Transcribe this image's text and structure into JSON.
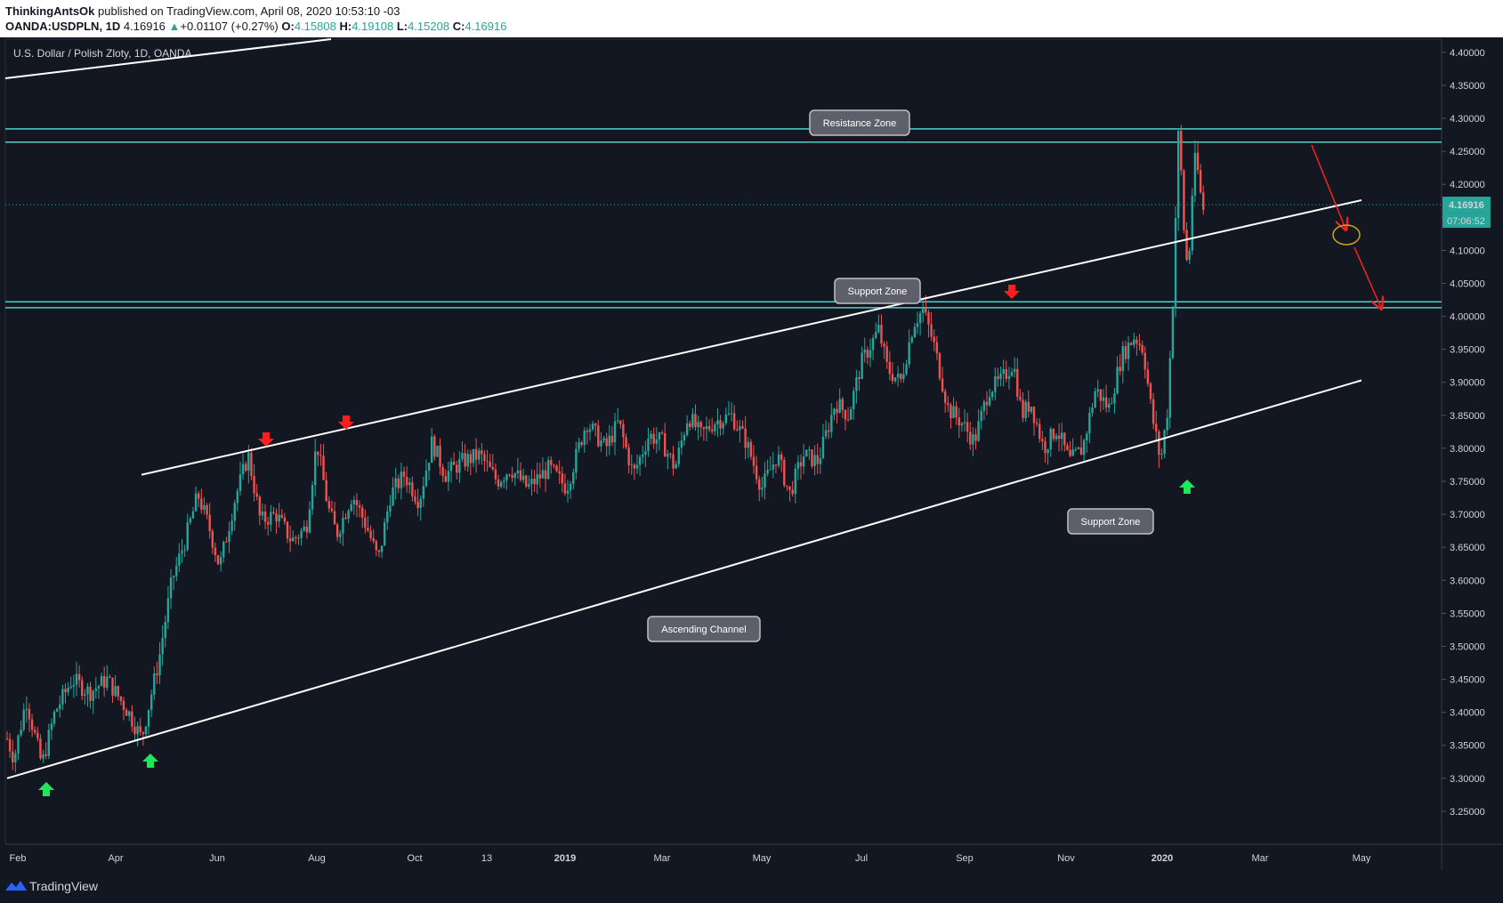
{
  "header": {
    "author": "ThinkingAntsOk",
    "published_text": "published on TradingView.com, April 08, 2020 10:53:10 -03",
    "symbol": "OANDA:USDPLN, 1D",
    "last": "4.16916",
    "change_arrow": "▲",
    "change": "+0.01107 (+0.27%)",
    "o_label": "O:",
    "o": "4.15808",
    "h_label": "H:",
    "h": "4.19108",
    "l_label": "L:",
    "l": "4.15208",
    "c_label": "C:",
    "c": "4.16916"
  },
  "footer": {
    "brand": "TradingView"
  },
  "colors": {
    "background": "#131722",
    "up": "#26a69a",
    "down": "#ef5350",
    "zone_line": "#4dd0c8",
    "trend_line": "#ffffff",
    "arrow_red": "#ff1e1e",
    "arrow_green": "#1ee85a",
    "label_bg": "#5d606b"
  },
  "chart_data": {
    "type": "candlestick",
    "title": "U.S. Dollar / Polish Zloty, 1D, OANDA",
    "ylim": [
      3.2,
      4.42
    ],
    "y_ticks": [
      "4.40000",
      "4.35000",
      "4.30000",
      "4.25000",
      "4.20000",
      "4.15000",
      "4.10000",
      "4.05000",
      "4.00000",
      "3.95000",
      "3.90000",
      "3.85000",
      "3.80000",
      "3.75000",
      "3.70000",
      "3.65000",
      "3.60000",
      "3.55000",
      "3.50000",
      "3.45000",
      "3.40000",
      "3.35000",
      "3.30000",
      "3.25000"
    ],
    "x_ticks": [
      {
        "label": "Feb",
        "bold": false
      },
      {
        "label": "Apr",
        "bold": false
      },
      {
        "label": "Jun",
        "bold": false
      },
      {
        "label": "Aug",
        "bold": false
      },
      {
        "label": "Oct",
        "bold": false
      },
      {
        "label": "13",
        "bold": false
      },
      {
        "label": "2019",
        "bold": true
      },
      {
        "label": "Mar",
        "bold": false
      },
      {
        "label": "May",
        "bold": false
      },
      {
        "label": "Jul",
        "bold": false
      },
      {
        "label": "Sep",
        "bold": false
      },
      {
        "label": "Nov",
        "bold": false
      },
      {
        "label": "2020",
        "bold": true
      },
      {
        "label": "Mar",
        "bold": false
      },
      {
        "label": "May",
        "bold": false
      }
    ],
    "price_series": [
      [
        0,
        3.36
      ],
      [
        8,
        3.33
      ],
      [
        22,
        3.42
      ],
      [
        40,
        3.32
      ],
      [
        55,
        3.4
      ],
      [
        75,
        3.45
      ],
      [
        95,
        3.43
      ],
      [
        115,
        3.45
      ],
      [
        140,
        3.4
      ],
      [
        155,
        3.36
      ],
      [
        175,
        3.48
      ],
      [
        190,
        3.6
      ],
      [
        205,
        3.66
      ],
      [
        220,
        3.73
      ],
      [
        233,
        3.68
      ],
      [
        245,
        3.62
      ],
      [
        262,
        3.72
      ],
      [
        278,
        3.79
      ],
      [
        292,
        3.69
      ],
      [
        310,
        3.7
      ],
      [
        328,
        3.66
      ],
      [
        345,
        3.68
      ],
      [
        357,
        3.81
      ],
      [
        370,
        3.71
      ],
      [
        380,
        3.67
      ],
      [
        398,
        3.73
      ],
      [
        415,
        3.68
      ],
      [
        428,
        3.63
      ],
      [
        442,
        3.73
      ],
      [
        458,
        3.76
      ],
      [
        475,
        3.72
      ],
      [
        490,
        3.81
      ],
      [
        505,
        3.76
      ],
      [
        525,
        3.78
      ],
      [
        545,
        3.79
      ],
      [
        565,
        3.75
      ],
      [
        580,
        3.77
      ],
      [
        600,
        3.74
      ],
      [
        625,
        3.77
      ],
      [
        645,
        3.74
      ],
      [
        668,
        3.84
      ],
      [
        690,
        3.8
      ],
      [
        705,
        3.84
      ],
      [
        722,
        3.76
      ],
      [
        740,
        3.82
      ],
      [
        755,
        3.81
      ],
      [
        770,
        3.77
      ],
      [
        785,
        3.85
      ],
      [
        800,
        3.82
      ],
      [
        815,
        3.84
      ],
      [
        835,
        3.85
      ],
      [
        852,
        3.81
      ],
      [
        870,
        3.74
      ],
      [
        888,
        3.79
      ],
      [
        902,
        3.73
      ],
      [
        918,
        3.79
      ],
      [
        935,
        3.78
      ],
      [
        955,
        3.87
      ],
      [
        970,
        3.85
      ],
      [
        985,
        3.93
      ],
      [
        1005,
        3.98
      ],
      [
        1015,
        3.92
      ],
      [
        1030,
        3.9
      ],
      [
        1045,
        3.99
      ],
      [
        1056,
        4.01
      ],
      [
        1068,
        3.96
      ],
      [
        1085,
        3.86
      ],
      [
        1100,
        3.84
      ],
      [
        1115,
        3.81
      ],
      [
        1132,
        3.89
      ],
      [
        1145,
        3.9
      ],
      [
        1160,
        3.93
      ],
      [
        1170,
        3.85
      ],
      [
        1180,
        3.87
      ],
      [
        1195,
        3.8
      ],
      [
        1210,
        3.83
      ],
      [
        1225,
        3.78
      ],
      [
        1240,
        3.8
      ],
      [
        1255,
        3.89
      ],
      [
        1270,
        3.86
      ],
      [
        1285,
        3.94
      ],
      [
        1300,
        3.97
      ],
      [
        1310,
        3.95
      ],
      [
        1320,
        3.85
      ],
      [
        1330,
        3.78
      ],
      [
        1338,
        3.86
      ],
      [
        1345,
        4.05
      ],
      [
        1350,
        4.28
      ],
      [
        1354,
        4.21
      ],
      [
        1358,
        4.1
      ],
      [
        1362,
        4.07
      ],
      [
        1366,
        4.18
      ],
      [
        1370,
        4.24
      ],
      [
        1374,
        4.21
      ],
      [
        1378,
        4.16
      ],
      [
        1382,
        4.17
      ]
    ],
    "price_line": "4.16916",
    "countdown": "07:06:52",
    "annotations": [
      {
        "name": "resistance-label",
        "text": "Resistance Zone"
      },
      {
        "name": "support-label",
        "text": "Support Zone"
      },
      {
        "name": "support-label-2",
        "text": "Support Zone"
      },
      {
        "name": "channel-label",
        "text": "Ascending Channel"
      }
    ],
    "resistance_zone": [
      4.264,
      4.284
    ],
    "support_zone": [
      4.013,
      4.022
    ],
    "channel": {
      "lower": [
        [
          0,
          3.3
        ],
        [
          1500,
          3.88
        ]
      ],
      "upper": [
        [
          155,
          3.76
        ],
        [
          1500,
          4.16
        ]
      ]
    }
  }
}
